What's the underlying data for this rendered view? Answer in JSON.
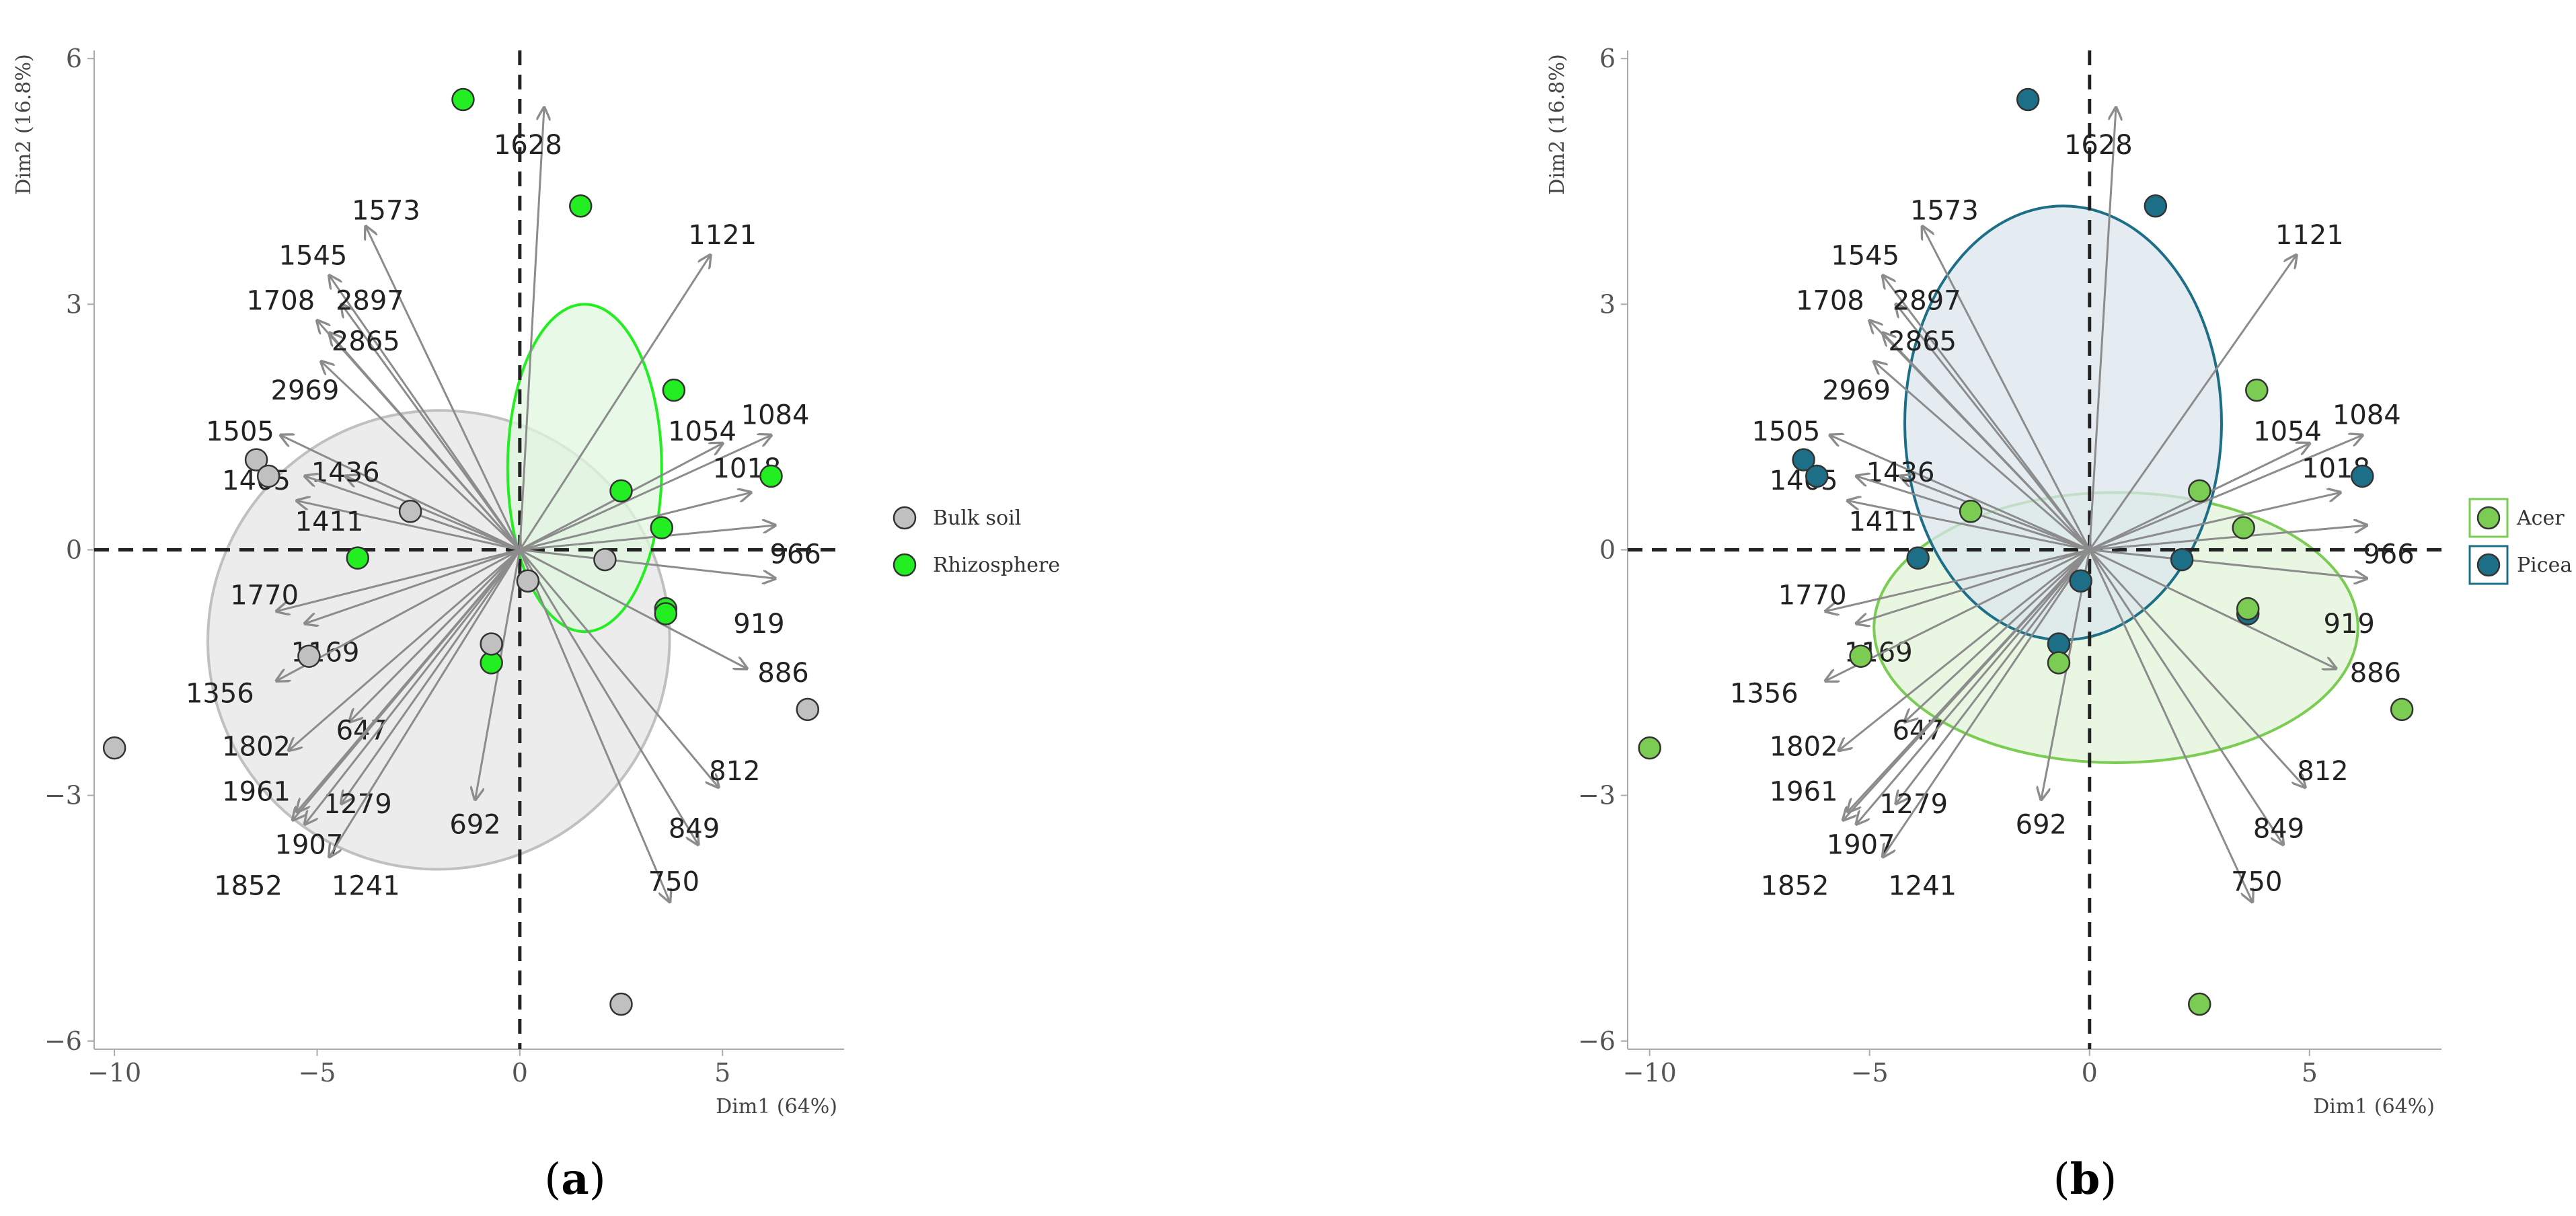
{
  "chart_data": [
    {
      "type": "scatter",
      "subtype": "pca-biplot",
      "panel_label": "a",
      "xlabel": "Dim1 (64%)",
      "ylabel": "Dim2 (16.8%)",
      "xlim": [
        -10.5,
        8
      ],
      "ylim": [
        -6.1,
        6.1
      ],
      "xticks": [
        -10,
        -5,
        0,
        5
      ],
      "yticks": [
        -6,
        -3,
        0,
        3,
        6
      ],
      "legend_position": "right",
      "groups": [
        {
          "name": "Bulk soil",
          "color": "#c0c0c0",
          "ellipse": {
            "cx": -2.0,
            "cy": -1.1,
            "rx": 5.7,
            "ry": 2.8,
            "angle": 18,
            "fill": "#e6e6e6"
          }
        },
        {
          "name": "Rhizosphere",
          "color": "#22ee22",
          "ellipse": {
            "cx": 1.6,
            "cy": 1.0,
            "rx": 1.9,
            "ry": 2.0,
            "angle": 0,
            "fill": "#e0f7e0"
          }
        }
      ],
      "points": [
        {
          "x": -1.4,
          "y": 5.5,
          "g": 1
        },
        {
          "x": 1.5,
          "y": 4.2,
          "g": 1
        },
        {
          "x": 3.8,
          "y": 1.95,
          "g": 1
        },
        {
          "x": 2.5,
          "y": 0.72,
          "g": 1
        },
        {
          "x": 6.2,
          "y": 0.9,
          "g": 1
        },
        {
          "x": 3.5,
          "y": 0.27,
          "g": 1
        },
        {
          "x": 3.6,
          "y": -0.72,
          "g": 1
        },
        {
          "x": 3.6,
          "y": -0.78,
          "g": 1
        },
        {
          "x": -4.0,
          "y": -0.1,
          "g": 1
        },
        {
          "x": -0.7,
          "y": -1.38,
          "g": 1
        },
        {
          "x": -6.5,
          "y": 1.1,
          "g": 0
        },
        {
          "x": -6.2,
          "y": 0.9,
          "g": 0
        },
        {
          "x": -2.7,
          "y": 0.47,
          "g": 0
        },
        {
          "x": 2.1,
          "y": -0.12,
          "g": 0
        },
        {
          "x": 0.2,
          "y": -0.38,
          "g": 0
        },
        {
          "x": -0.7,
          "y": -1.15,
          "g": 0
        },
        {
          "x": -5.2,
          "y": -1.3,
          "g": 0
        },
        {
          "x": -10.0,
          "y": -2.42,
          "g": 0
        },
        {
          "x": 7.1,
          "y": -1.95,
          "g": 0
        },
        {
          "x": 2.5,
          "y": -5.55,
          "g": 0
        }
      ]
    },
    {
      "type": "scatter",
      "subtype": "pca-biplot",
      "panel_label": "b",
      "xlabel": "Dim1 (64%)",
      "ylabel": "Dim2 (16.8%)",
      "xlim": [
        -10.5,
        8
      ],
      "ylim": [
        -6.1,
        6.1
      ],
      "xticks": [
        -10,
        -5,
        0,
        5
      ],
      "yticks": [
        -6,
        -3,
        0,
        3,
        6
      ],
      "legend_position": "right",
      "groups": [
        {
          "name": "Acer",
          "color": "#7acc52",
          "ellipse": {
            "cx": 0.6,
            "cy": -0.95,
            "rx": 5.5,
            "ry": 1.65,
            "angle": 0,
            "fill": "#e2f3d8"
          }
        },
        {
          "name": "Picea",
          "color": "#1d6f88",
          "ellipse": {
            "cx": -0.6,
            "cy": 1.55,
            "rx": 3.6,
            "ry": 2.65,
            "angle": 0,
            "fill": "#dbe6ee"
          }
        }
      ],
      "points": [
        {
          "x": -1.4,
          "y": 5.5,
          "g": 1
        },
        {
          "x": 1.5,
          "y": 4.2,
          "g": 1
        },
        {
          "x": -6.5,
          "y": 1.1,
          "g": 1
        },
        {
          "x": -6.2,
          "y": 0.9,
          "g": 1
        },
        {
          "x": 6.2,
          "y": 0.9,
          "g": 1
        },
        {
          "x": -3.9,
          "y": -0.1,
          "g": 1
        },
        {
          "x": 2.1,
          "y": -0.12,
          "g": 1
        },
        {
          "x": -0.2,
          "y": -0.38,
          "g": 1
        },
        {
          "x": -0.7,
          "y": -1.15,
          "g": 1
        },
        {
          "x": 3.6,
          "y": -0.78,
          "g": 1
        },
        {
          "x": 3.8,
          "y": 1.95,
          "g": 0
        },
        {
          "x": 2.5,
          "y": 0.72,
          "g": 0
        },
        {
          "x": -2.7,
          "y": 0.47,
          "g": 0
        },
        {
          "x": 3.5,
          "y": 0.27,
          "g": 0
        },
        {
          "x": 3.6,
          "y": -0.72,
          "g": 0
        },
        {
          "x": -0.7,
          "y": -1.38,
          "g": 0
        },
        {
          "x": -5.2,
          "y": -1.3,
          "g": 0
        },
        {
          "x": -10.0,
          "y": -2.42,
          "g": 0
        },
        {
          "x": 7.1,
          "y": -1.95,
          "g": 0
        },
        {
          "x": 2.5,
          "y": -5.55,
          "g": 0
        }
      ]
    }
  ],
  "variables": [
    {
      "label": "1628",
      "x": 0.6,
      "y": 5.4,
      "lx": 0.2,
      "ly": 4.95
    },
    {
      "label": "1573",
      "x": -3.8,
      "y": 3.95,
      "lx": -3.3,
      "ly": 4.15
    },
    {
      "label": "1121",
      "x": 4.7,
      "y": 3.6,
      "lx": 5.0,
      "ly": 3.85
    },
    {
      "label": "1545",
      "x": -4.7,
      "y": 3.35,
      "lx": -5.1,
      "ly": 3.6
    },
    {
      "label": "2897",
      "x": -4.4,
      "y": 3.0,
      "lx": -3.7,
      "ly": 3.05
    },
    {
      "label": "1708",
      "x": -5.0,
      "y": 2.8,
      "lx": -5.9,
      "ly": 3.05
    },
    {
      "label": "2865",
      "x": -4.7,
      "y": 2.65,
      "lx": -3.8,
      "ly": 2.55
    },
    {
      "label": "2969",
      "x": -4.9,
      "y": 2.3,
      "lx": -5.3,
      "ly": 1.95
    },
    {
      "label": "1084",
      "x": 6.2,
      "y": 1.4,
      "lx": 6.3,
      "ly": 1.65
    },
    {
      "label": "1054",
      "x": 5.0,
      "y": 1.3,
      "lx": 4.5,
      "ly": 1.45
    },
    {
      "label": "1505",
      "x": -5.9,
      "y": 1.4,
      "lx": -6.9,
      "ly": 1.45
    },
    {
      "label": "1436",
      "x": -4.3,
      "y": 0.9,
      "lx": -4.3,
      "ly": 0.95
    },
    {
      "label": "1465",
      "x": -5.3,
      "y": 0.9,
      "lx": -6.5,
      "ly": 0.85
    },
    {
      "label": "1018",
      "x": 5.7,
      "y": 0.7,
      "lx": 5.6,
      "ly": 1.0
    },
    {
      "label": "1411",
      "x": -5.5,
      "y": 0.6,
      "lx": -4.7,
      "ly": 0.35
    },
    {
      "label": "966",
      "x": 6.3,
      "y": 0.3,
      "lx": 6.8,
      "ly": -0.05
    },
    {
      "label": "1770",
      "x": -6.0,
      "y": -0.75,
      "lx": -6.3,
      "ly": -0.55
    },
    {
      "label": "919",
      "x": 6.3,
      "y": -0.35,
      "lx": 5.9,
      "ly": -0.9
    },
    {
      "label": "1169",
      "x": -5.3,
      "y": -0.9,
      "lx": -4.8,
      "ly": -1.25
    },
    {
      "label": "886",
      "x": 5.6,
      "y": -1.45,
      "lx": 6.5,
      "ly": -1.5
    },
    {
      "label": "1356",
      "x": -6.0,
      "y": -1.6,
      "lx": -7.4,
      "ly": -1.75
    },
    {
      "label": "647",
      "x": -4.2,
      "y": -2.1,
      "lx": -3.9,
      "ly": -2.2
    },
    {
      "label": "1802",
      "x": -5.7,
      "y": -2.45,
      "lx": -6.5,
      "ly": -2.4
    },
    {
      "label": "812",
      "x": 4.9,
      "y": -2.9,
      "lx": 5.3,
      "ly": -2.7
    },
    {
      "label": "1961",
      "x": -5.5,
      "y": -3.2,
      "lx": -6.5,
      "ly": -2.95
    },
    {
      "label": "692",
      "x": -1.1,
      "y": -3.05,
      "lx": -1.1,
      "ly": -3.35
    },
    {
      "label": "1279",
      "x": -4.4,
      "y": -3.1,
      "lx": -4.0,
      "ly": -3.1
    },
    {
      "label": "849",
      "x": 4.4,
      "y": -3.6,
      "lx": 4.3,
      "ly": -3.4
    },
    {
      "label": "1907",
      "x": -5.3,
      "y": -3.35,
      "lx": -5.2,
      "ly": -3.6
    },
    {
      "label": "1241",
      "x": -4.7,
      "y": -3.75,
      "lx": -3.8,
      "ly": -4.1
    },
    {
      "label": "1852",
      "x": -5.6,
      "y": -3.3,
      "lx": -6.7,
      "ly": -4.1
    },
    {
      "label": "750",
      "x": 3.7,
      "y": -4.3,
      "lx": 3.8,
      "ly": -4.05
    }
  ]
}
